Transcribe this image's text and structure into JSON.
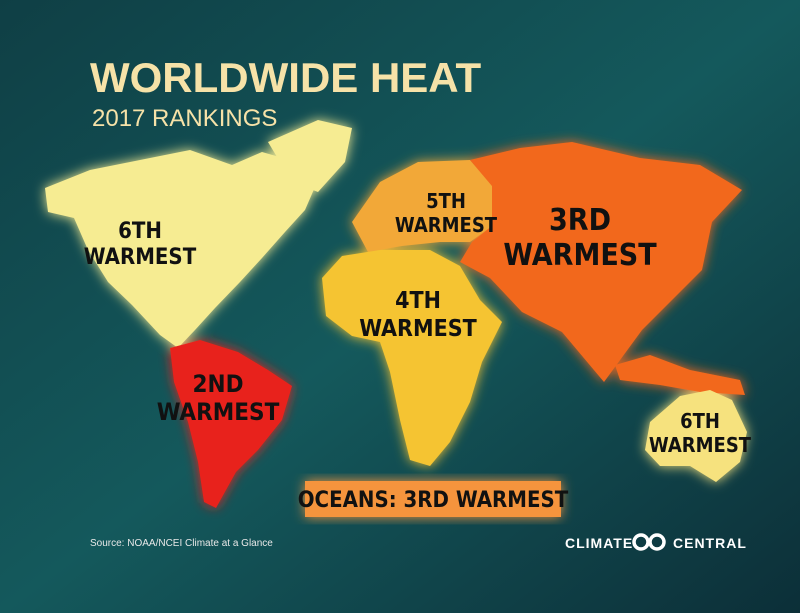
{
  "header": {
    "title": "WORLDWIDE HEAT",
    "subtitle": "2017 RANKINGS"
  },
  "regions": [
    {
      "lines": [
        "6TH",
        "WARMEST"
      ]
    },
    {
      "lines": [
        "2ND",
        "WARMEST"
      ]
    },
    {
      "lines": [
        "5TH",
        "WARMEST"
      ]
    },
    {
      "lines": [
        "3RD",
        "WARMEST"
      ]
    },
    {
      "lines": [
        "4TH",
        "WARMEST"
      ]
    },
    {
      "lines": [
        "6TH",
        "WARMEST"
      ]
    }
  ],
  "oceans": "OCEANS: 3RD WARMEST",
  "source": "Source: NOAA/NCEI Climate at a Glance",
  "logo": {
    "left": "CLIMATE",
    "right": "CENTRAL"
  }
}
